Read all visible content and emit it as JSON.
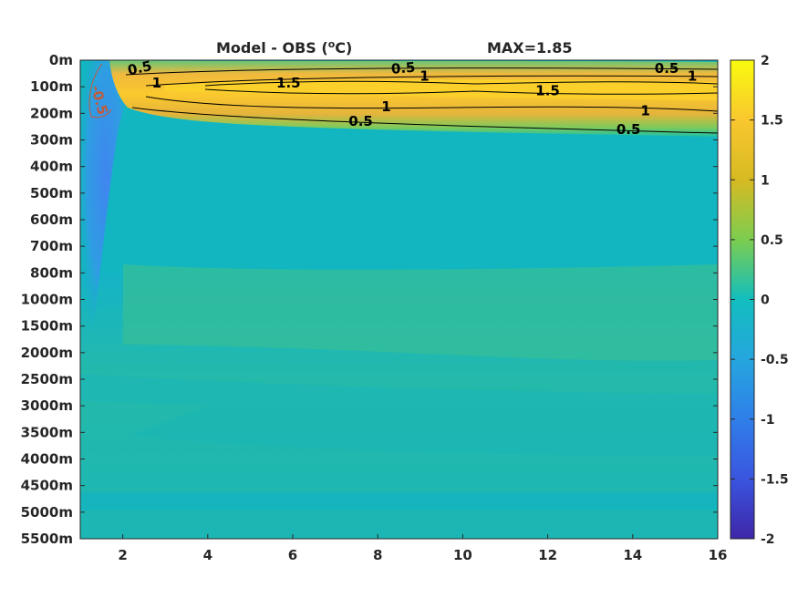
{
  "chart_data": {
    "type": "heatmap",
    "title_left": "Model - OBS (",
    "title_sup": "o",
    "title_unit": "C)",
    "title_right": "MAX=1.85",
    "x": {
      "ticks": [
        2,
        4,
        6,
        8,
        10,
        12,
        14,
        16
      ],
      "range": [
        1,
        16
      ]
    },
    "y": {
      "tick_labels": [
        "0m",
        "100m",
        "200m",
        "300m",
        "400m",
        "500m",
        "600m",
        "700m",
        "800m",
        "1000m",
        "1500m",
        "2000m",
        "2500m",
        "3000m",
        "3500m",
        "4000m",
        "4500m",
        "5000m",
        "5500m"
      ]
    },
    "colorbar": {
      "ticks": [
        2,
        1.5,
        1,
        0.5,
        0,
        -0.5,
        -1,
        -1.5,
        -2
      ],
      "range": [
        -2,
        2
      ]
    },
    "contour_labels": [
      {
        "text": "0.5",
        "x": 2.4,
        "level": 0.3,
        "rot": -12
      },
      {
        "text": "1",
        "x": 2.8,
        "level": 0.85,
        "rot": 0
      },
      {
        "text": "1.5",
        "x": 5.9,
        "level": 0.85,
        "rot": 0
      },
      {
        "text": "0.5",
        "x": 8.6,
        "level": 0.3,
        "rot": -5
      },
      {
        "text": "1",
        "x": 9.1,
        "level": 0.6,
        "rot": 0
      },
      {
        "text": "1.5",
        "x": 12.0,
        "level": 1.15,
        "rot": 0
      },
      {
        "text": "0.5",
        "x": 14.8,
        "level": 0.3,
        "rot": 0
      },
      {
        "text": "1",
        "x": 15.4,
        "level": 0.6,
        "rot": 0
      },
      {
        "text": "1",
        "x": 8.2,
        "level": 1.75,
        "rot": 0
      },
      {
        "text": "0.5",
        "x": 7.6,
        "level": 2.3,
        "rot": 0
      },
      {
        "text": "1",
        "x": 14.3,
        "level": 1.9,
        "rot": 0
      },
      {
        "text": "0.5",
        "x": 13.9,
        "level": 2.6,
        "rot": 0
      },
      {
        "text": "-0.5",
        "x": 1.45,
        "level": 1.5,
        "rot": 75
      }
    ],
    "colors": {
      "top_band": "#f9b93a",
      "band_core": "#fbd22c",
      "positive": "#33be8c",
      "neutral": "#11b5c1",
      "deep": "#22b7aa",
      "cold": "#3b8bea"
    }
  }
}
